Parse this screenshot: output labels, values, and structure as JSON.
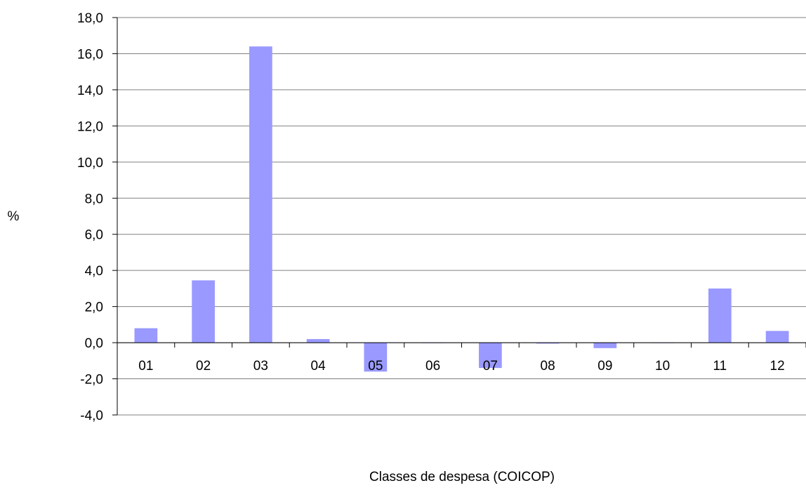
{
  "chart_data": {
    "type": "bar",
    "title": "",
    "xlabel": "Classes de despesa (COICOP)",
    "ylabel": "%",
    "categories": [
      "01",
      "02",
      "03",
      "04",
      "05",
      "06",
      "07",
      "08",
      "09",
      "10",
      "11",
      "12"
    ],
    "values": [
      0.8,
      3.45,
      16.4,
      0.2,
      -1.6,
      0.0,
      -1.4,
      -0.05,
      -0.3,
      0.0,
      3.0,
      0.65
    ],
    "ylim": [
      -4,
      18
    ],
    "yticks": [
      -4,
      -2,
      0,
      2,
      4,
      6,
      8,
      10,
      12,
      14,
      16,
      18
    ],
    "ytick_labels": [
      "-4,0",
      "-2,0",
      "0,0",
      "2,0",
      "4,0",
      "6,0",
      "8,0",
      "10,0",
      "12,0",
      "14,0",
      "16,0",
      "18,0"
    ],
    "grid": true,
    "legend": "none",
    "bar_color": "#9999ff"
  }
}
